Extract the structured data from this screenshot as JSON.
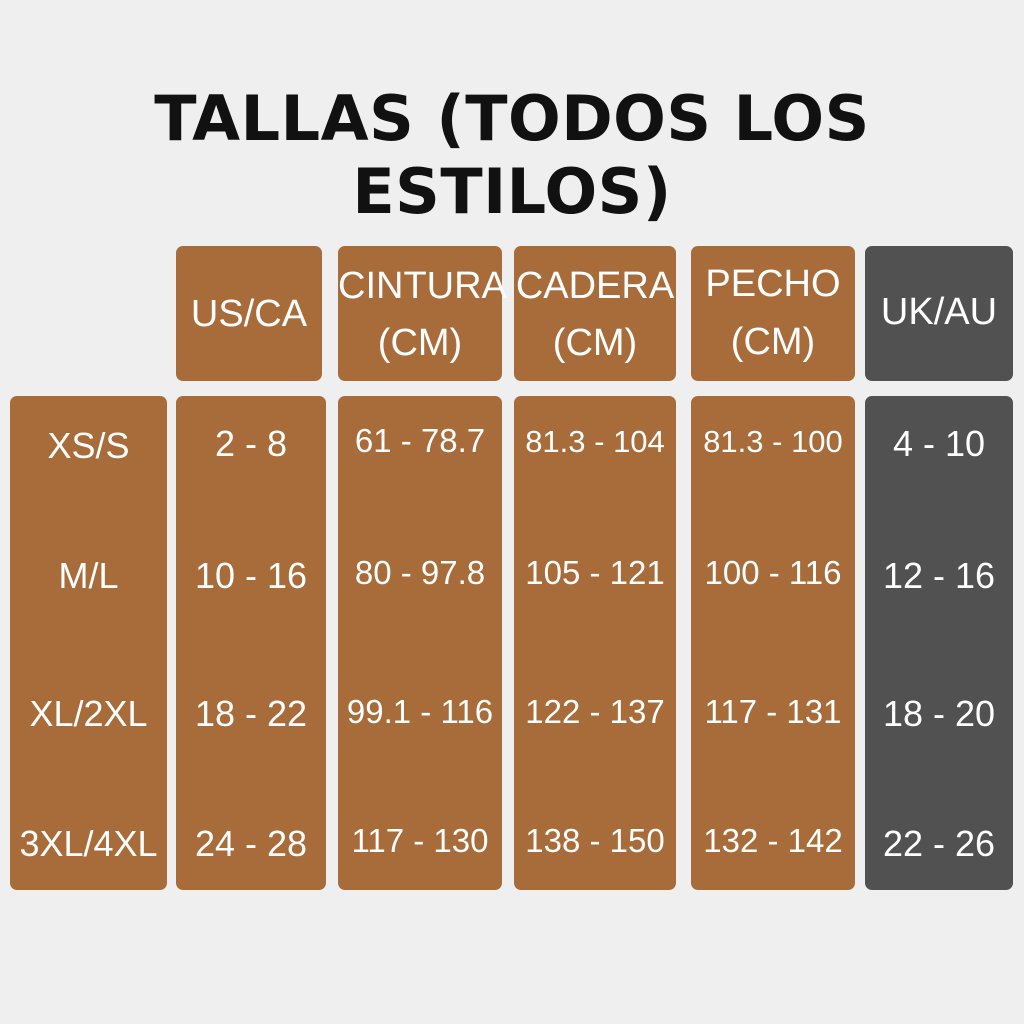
{
  "title": "TALLAS (TODOS LOS ESTILOS)",
  "colors": {
    "background": "#efefef",
    "brown": "#a86c3a",
    "gray": "#515151",
    "text": "#ffffff",
    "title": "#111111"
  },
  "headers": {
    "us_ca": "US/CA",
    "cintura": {
      "line1": "CINTURA",
      "line2": "(CM)"
    },
    "cadera": {
      "line1": "CADERA",
      "line2": "(CM)"
    },
    "pecho": {
      "line1": "PECHO",
      "line2": "(CM)"
    },
    "uk_au": "UK/AU"
  },
  "sizes": [
    "XS/S",
    "M/L",
    "XL/2XL",
    "3XL/4XL"
  ],
  "us_ca": [
    "2 - 8",
    "10 - 16",
    "18 - 22",
    "24 - 28"
  ],
  "cintura": [
    "61 - 78.7",
    "80 - 97.8",
    "99.1 - 116",
    "117 - 130"
  ],
  "cadera": [
    "81.3 - 104",
    "105 - 121",
    "122 - 137",
    "138 - 150"
  ],
  "pecho": [
    "81.3 - 100",
    "100 - 116",
    "117 - 131",
    "132 - 142"
  ],
  "uk_au": [
    "4 - 10",
    "12 - 16",
    "18 - 20",
    "22 - 26"
  ]
}
